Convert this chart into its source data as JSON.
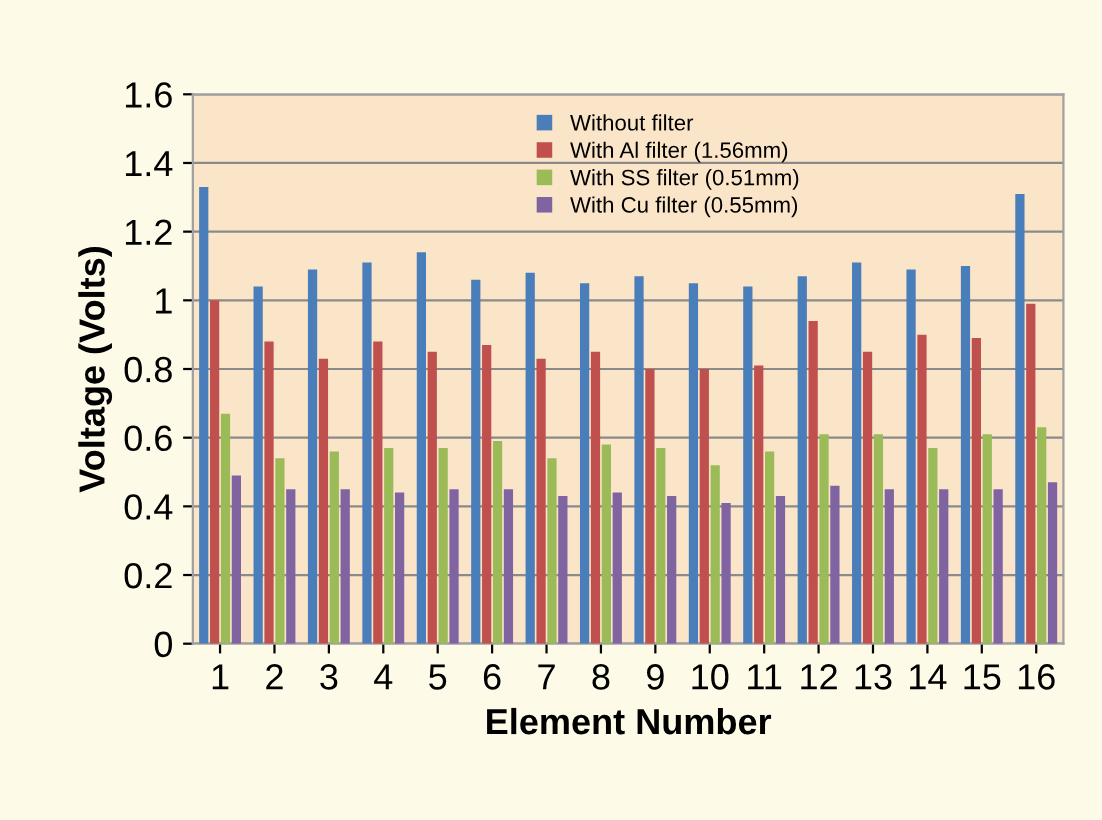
{
  "chart_data": {
    "type": "bar",
    "xlabel": "Element Number",
    "ylabel": "Voltage (Volts)",
    "categories": [
      "1",
      "2",
      "3",
      "4",
      "5",
      "6",
      "7",
      "8",
      "9",
      "10",
      "11",
      "12",
      "13",
      "14",
      "15",
      "16"
    ],
    "series": [
      {
        "name": "Without filter",
        "color": "#4a7ebb",
        "values": [
          1.33,
          1.04,
          1.09,
          1.11,
          1.14,
          1.06,
          1.08,
          1.05,
          1.07,
          1.05,
          1.04,
          1.07,
          1.11,
          1.09,
          1.1,
          1.31
        ]
      },
      {
        "name": "With Al filter (1.56mm)",
        "color": "#c0504d",
        "values": [
          1.0,
          0.88,
          0.83,
          0.88,
          0.85,
          0.87,
          0.83,
          0.85,
          0.8,
          0.8,
          0.81,
          0.94,
          0.85,
          0.9,
          0.89,
          0.99
        ]
      },
      {
        "name": "With SS filter (0.51mm)",
        "color": "#9bbb59",
        "values": [
          0.67,
          0.54,
          0.56,
          0.57,
          0.57,
          0.59,
          0.54,
          0.58,
          0.57,
          0.52,
          0.56,
          0.61,
          0.61,
          0.57,
          0.61,
          0.63
        ]
      },
      {
        "name": "With Cu filter (0.55mm)",
        "color": "#8064a2",
        "values": [
          0.49,
          0.45,
          0.45,
          0.44,
          0.45,
          0.45,
          0.43,
          0.44,
          0.43,
          0.41,
          0.43,
          0.46,
          0.45,
          0.45,
          0.45,
          0.47
        ]
      }
    ],
    "ylim": [
      0,
      1.6
    ],
    "yticks": [
      0,
      0.2,
      0.4,
      0.6,
      0.8,
      1,
      1.2,
      1.4,
      1.6
    ],
    "grid": "y",
    "legend": "top right"
  }
}
